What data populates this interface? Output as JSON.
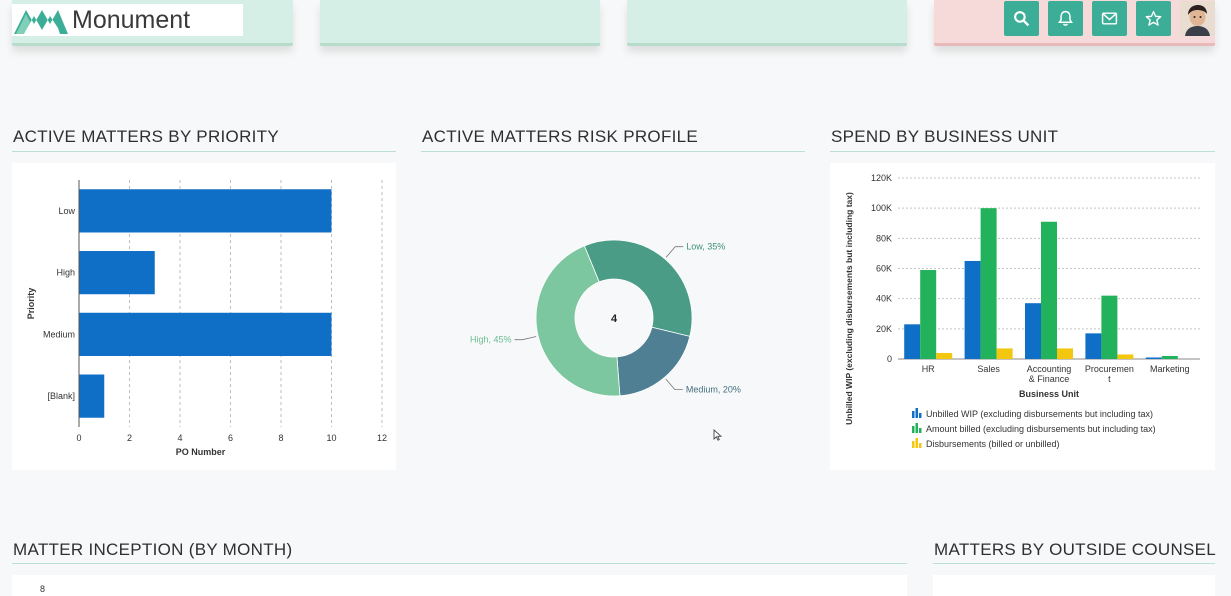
{
  "brand": {
    "name": "Monument"
  },
  "toolbar": {
    "items": [
      {
        "icon": "search-icon"
      },
      {
        "icon": "bell-icon"
      },
      {
        "icon": "mail-icon"
      },
      {
        "icon": "star-icon"
      }
    ]
  },
  "colors": {
    "accent": "#3cae97",
    "bar_blue": "#0f6fc6",
    "bar_green": "#22b25c",
    "bar_yellow": "#f3c60f",
    "donut_low": "#4a9c87",
    "donut_medium": "#4e7f93",
    "donut_high": "#7cc79f"
  },
  "sections": {
    "priority": "ACTIVE MATTERS BY PRIORITY",
    "risk": "ACTIVE MATTERS RISK PROFILE",
    "spend": "SPEND BY BUSINESS UNIT",
    "inception": "MATTER INCEPTION (BY MONTH)",
    "counsel": "MATTERS BY OUTSIDE COUNSEL"
  },
  "chart_data": [
    {
      "type": "bar",
      "orientation": "horizontal",
      "categories": [
        "Low",
        "High",
        "Medium",
        "[Blank]"
      ],
      "values": [
        10,
        3,
        10,
        1
      ],
      "xlabel": "PO Number",
      "ylabel": "Priority",
      "xlim": [
        0,
        12
      ],
      "xticks": [
        "0",
        "2",
        "4",
        "6",
        "8",
        "10",
        "12"
      ],
      "grid": true
    },
    {
      "type": "pie",
      "variant": "donut",
      "center_label": "4",
      "slices": [
        {
          "label": "Low, 35%",
          "value": 35
        },
        {
          "label": "Medium, 20%",
          "value": 20
        },
        {
          "label": "High, 45%",
          "value": 45
        }
      ]
    },
    {
      "type": "bar",
      "categories": [
        "HR",
        "Sales",
        "Accounting & Finance",
        "Procurement",
        "Marketing"
      ],
      "category_labels": [
        [
          "HR"
        ],
        [
          "Sales"
        ],
        [
          "Accounting",
          "& Finance"
        ],
        [
          "Procuremen",
          "t"
        ],
        [
          "Marketing"
        ]
      ],
      "series": [
        {
          "name": "Unbilled WIP (excluding disbursements but including tax)",
          "values": [
            23000,
            65000,
            37000,
            17000,
            1000
          ]
        },
        {
          "name": "Amount billed (excluding disbursements but including tax)",
          "values": [
            59000,
            100000,
            91000,
            42000,
            2000
          ]
        },
        {
          "name": "Disbursements (billed or unbilled)",
          "values": [
            4000,
            7000,
            7000,
            3000,
            0
          ]
        }
      ],
      "xlabel": "Business Unit",
      "ylabel": "Unbilled WIP (excluding disbursements but including tax)",
      "ylim": [
        0,
        120000
      ],
      "yticks": [
        "0",
        "20K",
        "40K",
        "60K",
        "80K",
        "100K",
        "120K"
      ],
      "grid": true,
      "legend_position": "bottom"
    }
  ],
  "inception_chart": {
    "first_tick": "8"
  }
}
